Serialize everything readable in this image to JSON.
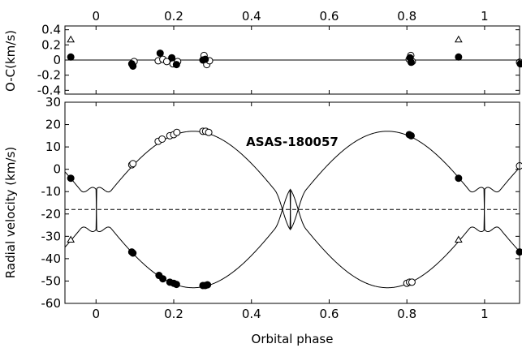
{
  "chart_data": {
    "type": "scatter",
    "title": "ASAS-180057",
    "x_range": [
      -0.08,
      1.09
    ],
    "top_x_ticks": [
      "0",
      "0.2",
      "0.4",
      "0.6",
      "0.8",
      "1"
    ],
    "top_x_tick_values": [
      0,
      0.2,
      0.4,
      0.6,
      0.8,
      1.0
    ],
    "bottom_x_ticks": [
      "0",
      "0.2",
      "0.4",
      "0.6",
      "0.8",
      "1"
    ],
    "bottom_x_tick_values": [
      0,
      0.2,
      0.4,
      0.6,
      0.8,
      1.0
    ],
    "xlabel": "Orbital phase",
    "panels": {
      "residuals": {
        "ylabel": "O-C(km/s)",
        "ylim": [
          -0.45,
          0.45
        ],
        "y_ticks": [
          "0.4",
          "0.2",
          "0",
          "-0.2",
          "-0.4"
        ],
        "y_tick_values": [
          0.4,
          0.2,
          0,
          -0.2,
          -0.4
        ],
        "zero_line": 0,
        "primary_filled": [
          [
            -0.065,
            0.04
          ],
          [
            0.092,
            -0.05
          ],
          [
            0.095,
            -0.08
          ],
          [
            0.165,
            0.09
          ],
          [
            0.195,
            0.03
          ],
          [
            0.207,
            -0.06
          ],
          [
            0.275,
            0.0
          ],
          [
            0.281,
            0.01
          ],
          [
            0.808,
            0.03
          ],
          [
            0.811,
            -0.03
          ],
          [
            0.933,
            0.04
          ],
          [
            1.092,
            -0.05
          ]
        ],
        "secondary_open": [
          [
            0.095,
            -0.04
          ],
          [
            0.098,
            -0.02
          ],
          [
            0.16,
            -0.01
          ],
          [
            0.172,
            0.01
          ],
          [
            0.182,
            -0.02
          ],
          [
            0.198,
            -0.05
          ],
          [
            0.21,
            -0.02
          ],
          [
            0.278,
            0.06
          ],
          [
            0.285,
            -0.06
          ],
          [
            0.292,
            -0.01
          ],
          [
            0.806,
            0.01
          ],
          [
            0.81,
            0.06
          ],
          [
            0.814,
            -0.02
          ],
          [
            1.09,
            -0.03
          ],
          [
            1.093,
            -0.07
          ]
        ],
        "secondary_triangle": [
          [
            -0.065,
            0.27
          ],
          [
            0.933,
            0.27
          ]
        ]
      },
      "radial_velocity": {
        "ylabel": "Radial velocity (km/s)",
        "ylim": [
          -60,
          30
        ],
        "y_ticks": [
          "30",
          "20",
          "10",
          "0",
          "-10",
          "-20",
          "-30",
          "-40",
          "-50",
          "-60"
        ],
        "y_tick_values": [
          30,
          20,
          10,
          0,
          -10,
          -20,
          -30,
          -40,
          -50,
          -60
        ],
        "systemic_velocity": -18,
        "model": {
          "gamma": -18,
          "K1": 35,
          "K2": 35
        },
        "primary_filled": [
          [
            -0.065,
            -4
          ],
          [
            0.092,
            -37
          ],
          [
            0.095,
            -37.5
          ],
          [
            0.162,
            -47.5
          ],
          [
            0.172,
            -49
          ],
          [
            0.19,
            -50.5
          ],
          [
            0.2,
            -51
          ],
          [
            0.207,
            -51.5
          ],
          [
            0.275,
            -52
          ],
          [
            0.281,
            -52
          ],
          [
            0.287,
            -51.7
          ],
          [
            0.806,
            15.5
          ],
          [
            0.811,
            15
          ],
          [
            0.933,
            -4
          ],
          [
            1.09,
            -37
          ],
          [
            1.093,
            -37.5
          ]
        ],
        "secondary_open": [
          [
            0.092,
            2
          ],
          [
            0.095,
            2.5
          ],
          [
            0.16,
            12.5
          ],
          [
            0.17,
            13.5
          ],
          [
            0.19,
            15
          ],
          [
            0.2,
            15.5
          ],
          [
            0.208,
            16.5
          ],
          [
            0.275,
            17
          ],
          [
            0.282,
            17
          ],
          [
            0.29,
            16.5
          ],
          [
            0.8,
            -51
          ],
          [
            0.807,
            -50.5
          ],
          [
            0.813,
            -50.5
          ],
          [
            1.09,
            1.5
          ],
          [
            1.093,
            2
          ]
        ],
        "secondary_triangle": [
          [
            -0.065,
            -31.5
          ],
          [
            0.933,
            -31.5
          ]
        ]
      }
    }
  }
}
